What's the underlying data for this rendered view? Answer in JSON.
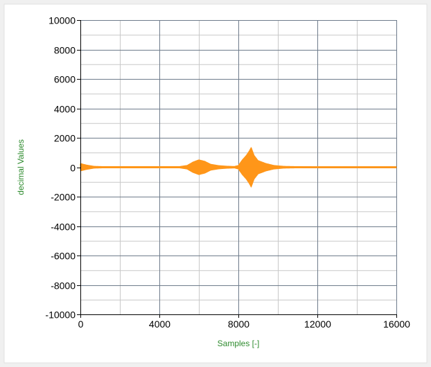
{
  "chart_data": {
    "type": "line",
    "title": "",
    "xlabel": "Samples [-]",
    "ylabel": "decimal Values",
    "xlim": [
      0,
      16000
    ],
    "ylim": [
      -10000,
      10000
    ],
    "x_major_ticks": [
      0,
      4000,
      8000,
      12000,
      16000
    ],
    "x_minor_ticks": [
      2000,
      6000,
      10000,
      14000
    ],
    "y_major_ticks": [
      10000,
      8000,
      6000,
      4000,
      2000,
      0,
      -2000,
      -4000,
      -6000,
      -8000,
      -10000
    ],
    "x_tick_labels": [
      "0",
      "4000",
      "8000",
      "12000",
      "16000"
    ],
    "y_tick_labels": [
      "10000",
      "8000",
      "6000",
      "4000",
      "2000",
      "0",
      "-2000",
      "-4000",
      "-6000",
      "-8000",
      "-10000"
    ],
    "grid": true,
    "legend": "none",
    "colors": {
      "series": "#ff9619",
      "axis_title": "#2e8b2e",
      "major_grid": "#6e7b8b",
      "minor_grid": "#c8c8c8",
      "plot_background": "#ffffff",
      "page_background": "#f0f0f0"
    },
    "series": [
      {
        "envelope": [
          {
            "x": 0,
            "amp": 250
          },
          {
            "x": 300,
            "amp": 150
          },
          {
            "x": 700,
            "amp": 60
          },
          {
            "x": 1200,
            "amp": 40
          },
          {
            "x": 5000,
            "amp": 40
          },
          {
            "x": 5400,
            "amp": 120
          },
          {
            "x": 5700,
            "amp": 350
          },
          {
            "x": 6000,
            "amp": 500
          },
          {
            "x": 6300,
            "amp": 400
          },
          {
            "x": 6600,
            "amp": 200
          },
          {
            "x": 7000,
            "amp": 110
          },
          {
            "x": 7400,
            "amp": 70
          },
          {
            "x": 7800,
            "amp": 50
          },
          {
            "x": 8000,
            "amp": 120
          },
          {
            "x": 8200,
            "amp": 500
          },
          {
            "x": 8400,
            "amp": 800
          },
          {
            "x": 8550,
            "amp": 1100
          },
          {
            "x": 8650,
            "amp": 1350
          },
          {
            "x": 8800,
            "amp": 800
          },
          {
            "x": 9000,
            "amp": 450
          },
          {
            "x": 9400,
            "amp": 250
          },
          {
            "x": 9800,
            "amp": 120
          },
          {
            "x": 10300,
            "amp": 60
          },
          {
            "x": 11000,
            "amp": 40
          },
          {
            "x": 16000,
            "amp": 35
          }
        ]
      }
    ]
  }
}
